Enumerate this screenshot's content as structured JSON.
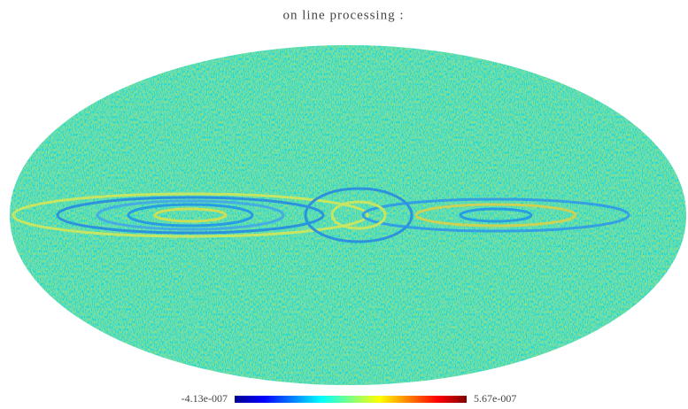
{
  "chart_data": {
    "type": "mollweide-map",
    "title": "on line processing :",
    "colormap": "jet",
    "clim": [
      {
        "value": -4.13e-07,
        "label": "-4.13e-007"
      },
      {
        "value": 5.67e-07,
        "label": "5.67e-007"
      }
    ]
  }
}
